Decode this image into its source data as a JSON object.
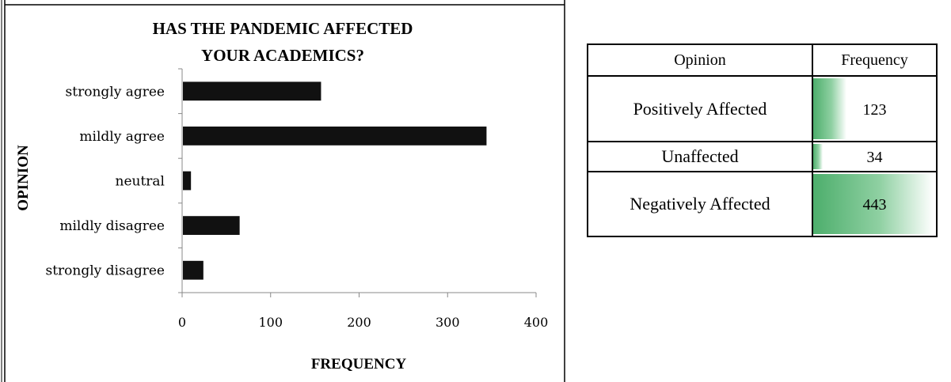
{
  "chart_data": [
    {
      "type": "bar",
      "orientation": "horizontal",
      "title": "HAS THE PANDEMIC AFFECTED YOUR ACADEMICS?",
      "title_lines": [
        "HAS THE PANDEMIC AFFECTED",
        "YOUR ACADEMICS?"
      ],
      "xlabel": "FREQUENCY",
      "ylabel": "OPINION",
      "categories": [
        "strongly agree",
        "mildly agree",
        "neutral",
        "mildly disagree",
        "strongly disagree"
      ],
      "values": [
        157,
        344,
        10,
        65,
        24
      ],
      "xlim": [
        0,
        400
      ],
      "xticks": [
        "0",
        "100",
        "200",
        "300",
        "400"
      ],
      "bar_color": "#111111",
      "grid": false,
      "legend": "none"
    },
    {
      "type": "table",
      "headers": [
        "Opinion",
        "Frequency"
      ],
      "rows": [
        {
          "opinion": "Positively Affected",
          "frequency": "123",
          "value": 123
        },
        {
          "opinion": "Unaffected",
          "frequency": "34",
          "value": 34
        },
        {
          "opinion": "Negatively Affected",
          "frequency": "443",
          "value": 443
        }
      ],
      "data_bar_max": 443,
      "data_bar_color": "#4dae6c"
    }
  ]
}
